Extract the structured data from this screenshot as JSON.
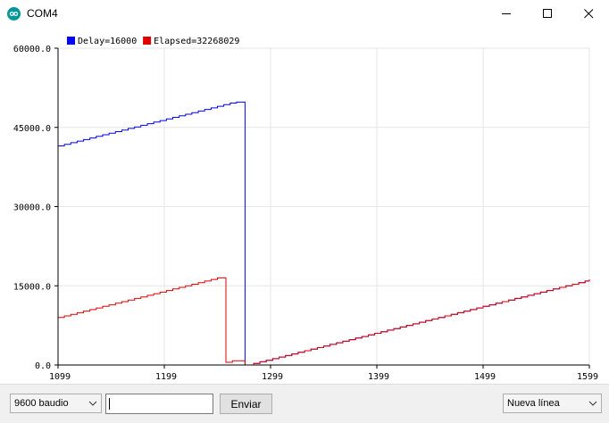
{
  "window": {
    "title": "COM4",
    "icon": "arduino-icon",
    "controls": [
      "minimize-icon",
      "maximize-icon",
      "close-icon"
    ]
  },
  "chart_data": {
    "type": "line",
    "title": "",
    "xlabel": "",
    "ylabel": "",
    "xlim": [
      1099,
      1599
    ],
    "ylim": [
      0,
      60000
    ],
    "x_ticks": [
      1099,
      1199,
      1299,
      1399,
      1499,
      1599
    ],
    "y_ticks": [
      0,
      15000,
      30000,
      45000,
      60000
    ],
    "x_tick_labels": [
      "1099",
      "1199",
      "1299",
      "1399",
      "1499",
      "1599"
    ],
    "y_tick_labels": [
      "0.0",
      "15000.0",
      "30000.0",
      "45000.0",
      "60000.0"
    ],
    "grid": true,
    "legend_placement": "top-left",
    "series": [
      {
        "name": "Delay=16000",
        "color": "#0000ff",
        "x": [
          1099,
          1105,
          1111,
          1117,
          1123,
          1129,
          1135,
          1141,
          1147,
          1153,
          1159,
          1165,
          1171,
          1177,
          1183,
          1189,
          1195,
          1201,
          1207,
          1213,
          1219,
          1225,
          1231,
          1237,
          1243,
          1249,
          1255,
          1261,
          1267,
          1273,
          1275,
          1277,
          1283,
          1289,
          1295,
          1301,
          1307,
          1313,
          1319,
          1325,
          1331,
          1337,
          1343,
          1349,
          1355,
          1361,
          1367,
          1373,
          1379,
          1385,
          1391,
          1397,
          1403,
          1409,
          1415,
          1421,
          1427,
          1433,
          1439,
          1445,
          1451,
          1457,
          1463,
          1469,
          1475,
          1481,
          1487,
          1493,
          1499,
          1505,
          1511,
          1517,
          1523,
          1529,
          1535,
          1541,
          1547,
          1553,
          1559,
          1565,
          1571,
          1577,
          1583,
          1589,
          1595,
          1599
        ],
        "values": [
          41500,
          41800,
          42100,
          42400,
          42700,
          43000,
          43300,
          43600,
          43900,
          44200,
          44500,
          44800,
          45100,
          45400,
          45700,
          46000,
          46300,
          46600,
          46900,
          47200,
          47500,
          47800,
          48100,
          48400,
          48700,
          49000,
          49300,
          49600,
          49800,
          49800,
          0,
          0,
          300,
          600,
          900,
          1200,
          1500,
          1800,
          2100,
          2400,
          2700,
          3000,
          3300,
          3600,
          3900,
          4200,
          4500,
          4800,
          5100,
          5400,
          5700,
          6000,
          6300,
          6600,
          6900,
          7200,
          7500,
          7800,
          8100,
          8400,
          8700,
          9000,
          9300,
          9600,
          9900,
          10200,
          10500,
          10800,
          11100,
          11400,
          11700,
          12000,
          12300,
          12600,
          12900,
          13200,
          13500,
          13800,
          14100,
          14400,
          14700,
          15000,
          15300,
          15600,
          15900,
          16200
        ]
      },
      {
        "name": "Elapsed=32268029",
        "color": "#e00000",
        "x": [
          1099,
          1105,
          1111,
          1117,
          1123,
          1129,
          1135,
          1141,
          1147,
          1153,
          1159,
          1165,
          1171,
          1177,
          1183,
          1189,
          1195,
          1201,
          1207,
          1213,
          1219,
          1225,
          1231,
          1237,
          1243,
          1249,
          1255,
          1257,
          1263,
          1269,
          1275,
          1277,
          1283,
          1289,
          1295,
          1301,
          1307,
          1313,
          1319,
          1325,
          1331,
          1337,
          1343,
          1349,
          1355,
          1361,
          1367,
          1373,
          1379,
          1385,
          1391,
          1397,
          1403,
          1409,
          1415,
          1421,
          1427,
          1433,
          1439,
          1445,
          1451,
          1457,
          1463,
          1469,
          1475,
          1481,
          1487,
          1493,
          1499,
          1505,
          1511,
          1517,
          1523,
          1529,
          1535,
          1541,
          1547,
          1553,
          1559,
          1565,
          1571,
          1577,
          1583,
          1589,
          1595,
          1599
        ],
        "values": [
          9000,
          9300,
          9600,
          9900,
          10200,
          10500,
          10800,
          11100,
          11400,
          11700,
          12000,
          12300,
          12600,
          12900,
          13200,
          13500,
          13800,
          14100,
          14400,
          14700,
          15000,
          15300,
          15600,
          15900,
          16200,
          16500,
          16500,
          500,
          800,
          800,
          0,
          0,
          300,
          600,
          900,
          1200,
          1500,
          1800,
          2100,
          2400,
          2700,
          3000,
          3300,
          3600,
          3900,
          4200,
          4500,
          4800,
          5100,
          5400,
          5700,
          6000,
          6300,
          6600,
          6900,
          7200,
          7500,
          7800,
          8100,
          8400,
          8700,
          9000,
          9300,
          9600,
          9900,
          10200,
          10500,
          10800,
          11100,
          11400,
          11700,
          12000,
          12300,
          12600,
          12900,
          13200,
          13500,
          13800,
          14100,
          14400,
          14700,
          15000,
          15300,
          15600,
          15900,
          16200
        ]
      }
    ]
  },
  "controls": {
    "baud_rate": "9600 baudio",
    "send_value": "",
    "send_button": "Enviar",
    "line_ending": "Nueva línea"
  }
}
